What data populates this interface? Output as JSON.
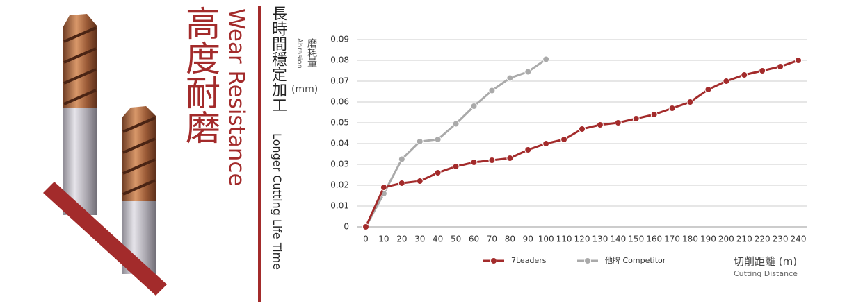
{
  "banner": {
    "title_cjk": "高度耐磨",
    "title_en": "Wear Resistance",
    "subtitle_cjk": "長時間穩定加工",
    "subtitle_en": "Longer Cutting Life Time"
  },
  "chart_data": {
    "type": "line",
    "y_label_cjk": "磨耗量",
    "y_label_unit": "(mm)",
    "y_label_en": "Abrasion",
    "x_label_cjk": "切削距離 (m)",
    "x_label_en": "Cutting Distance",
    "x": [
      0,
      10,
      20,
      30,
      40,
      50,
      60,
      70,
      80,
      90,
      100,
      110,
      120,
      130,
      140,
      150,
      160,
      170,
      180,
      190,
      200,
      210,
      220,
      230,
      240
    ],
    "series": [
      {
        "name": "7Leaders",
        "color": "#a32b2b",
        "values": [
          0,
          0.019,
          0.021,
          0.022,
          0.026,
          0.029,
          0.031,
          0.032,
          0.033,
          0.037,
          0.04,
          0.042,
          0.047,
          0.049,
          0.05,
          0.052,
          0.054,
          0.057,
          0.06,
          0.066,
          0.07,
          0.073,
          0.075,
          0.077,
          0.08
        ]
      },
      {
        "name": "他牌 Competitor",
        "color": "#aaaaaa",
        "values": [
          0,
          0.016,
          0.0325,
          0.041,
          0.042,
          0.0495,
          0.058,
          0.0655,
          0.0715,
          0.0745,
          0.0805,
          null,
          null,
          null,
          null,
          null,
          null,
          null,
          null,
          null,
          null,
          null,
          null,
          null,
          null
        ]
      }
    ],
    "xlim": [
      0,
      240
    ],
    "xticks": [
      0,
      10,
      20,
      30,
      40,
      50,
      60,
      70,
      80,
      90,
      100,
      110,
      120,
      130,
      140,
      150,
      160,
      170,
      180,
      190,
      200,
      210,
      220,
      230,
      240
    ],
    "ylim": [
      0,
      0.09
    ],
    "yticks": [
      0,
      0.01,
      0.02,
      0.03,
      0.04,
      0.05,
      0.06,
      0.07,
      0.08,
      0.09
    ],
    "grid": true
  }
}
